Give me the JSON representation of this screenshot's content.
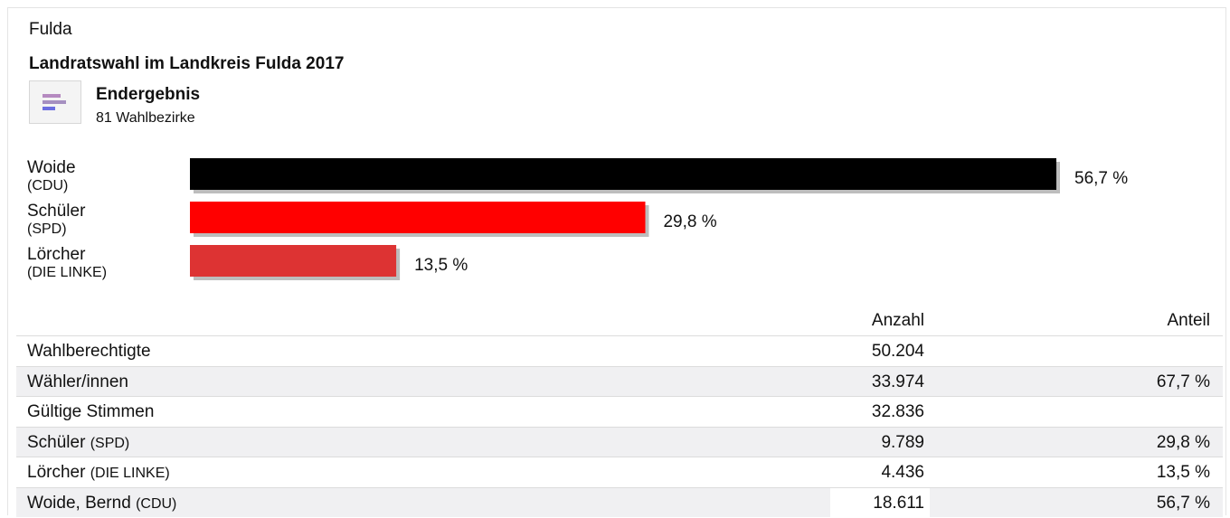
{
  "header": {
    "place": "Fulda",
    "title": "Landratswahl im Landkreis Fulda 2017",
    "status": "Endergebnis",
    "districts": "81 Wahlbezirke",
    "icon": "bar-chart-icon"
  },
  "chart_data": {
    "type": "bar",
    "orientation": "horizontal",
    "categories": [
      "Woide",
      "Schüler",
      "Lörcher"
    ],
    "parties": [
      "(CDU)",
      "(SPD)",
      "(DIE LINKE)"
    ],
    "values": [
      56.7,
      29.8,
      13.5
    ],
    "value_labels": [
      "56,7 %",
      "29,8 %",
      "13,5 %"
    ],
    "colors": [
      "#000000",
      "#ff0000",
      "#dd3333"
    ],
    "unit": "%",
    "grid": false,
    "legend": "none"
  },
  "table": {
    "headers": {
      "count": "Anzahl",
      "share": "Anteil"
    },
    "rows": [
      {
        "name": "Wahlberechtigte",
        "party": "",
        "count": "50.204",
        "share": ""
      },
      {
        "name": "Wähler/innen",
        "party": "",
        "count": "33.974",
        "share": "67,7 %"
      },
      {
        "name": "Gültige Stimmen",
        "party": "",
        "count": "32.836",
        "share": ""
      },
      {
        "name": "Schüler",
        "party": "(SPD)",
        "count": "9.789",
        "share": "29,8 %"
      },
      {
        "name": "Lörcher",
        "party": "(DIE LINKE)",
        "count": "4.436",
        "share": "13,5 %"
      },
      {
        "name": "Woide, Bernd",
        "party": "(CDU)",
        "count": "18.611",
        "share": "56,7 %"
      }
    ]
  }
}
